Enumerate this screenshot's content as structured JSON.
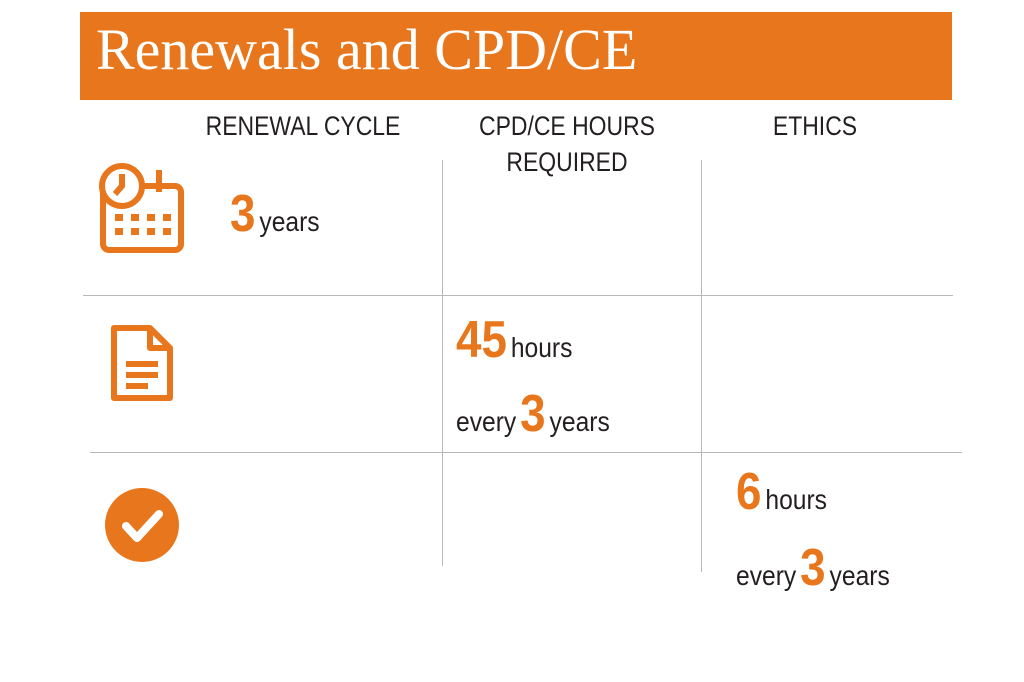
{
  "header": {
    "title": "Renewals and CPD/CE"
  },
  "columns": [
    "RENEWAL CYCLE",
    "CPD/CE HOURS REQUIRED",
    "ETHICS"
  ],
  "rows": [
    {
      "number": 3,
      "unit": "years"
    },
    {
      "number": 45,
      "unit": "hours",
      "period_prefix": "every",
      "period_number": 3,
      "period_unit": "years"
    },
    {
      "number": 6,
      "unit": "hours",
      "period_prefix": "every",
      "period_number": 3,
      "period_unit": "years"
    }
  ]
}
